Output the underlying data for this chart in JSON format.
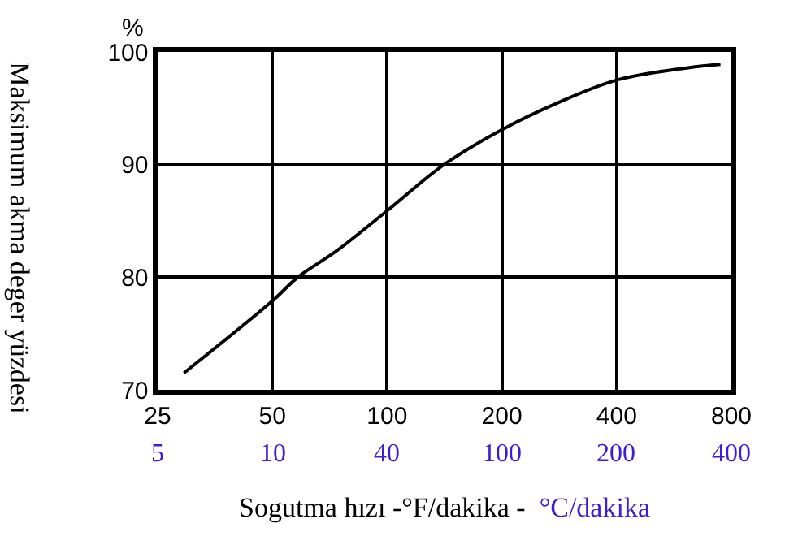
{
  "chart_data": {
    "type": "line",
    "xlabel": "Sogutma hızı -°F/dakika -",
    "x2label": "°C/dakika",
    "ylabel": "Maksimum akma deger yüzdesi",
    "annotations": [
      "%",
      "5",
      "10",
      "40",
      "100",
      "200",
      "400"
    ],
    "log": "x",
    "xlim": [
      25,
      800
    ],
    "xticks": [
      25,
      50,
      100,
      200,
      400,
      800
    ],
    "ylim": [
      70,
      100
    ],
    "yticks": [
      70,
      80,
      90,
      100
    ],
    "grid": true,
    "marker": "none",
    "line_style": "solid",
    "x": [
      29.3,
      50,
      58.3,
      73.4,
      100,
      141,
      200,
      281,
      400,
      616,
      749
    ],
    "series": [
      {
        "color": "#000000",
        "values": [
          71.5,
          77.9,
          80,
          82.3,
          85.9,
          90,
          93.1,
          95.5,
          97.5,
          98.6,
          98.9
        ]
      }
    ]
  }
}
